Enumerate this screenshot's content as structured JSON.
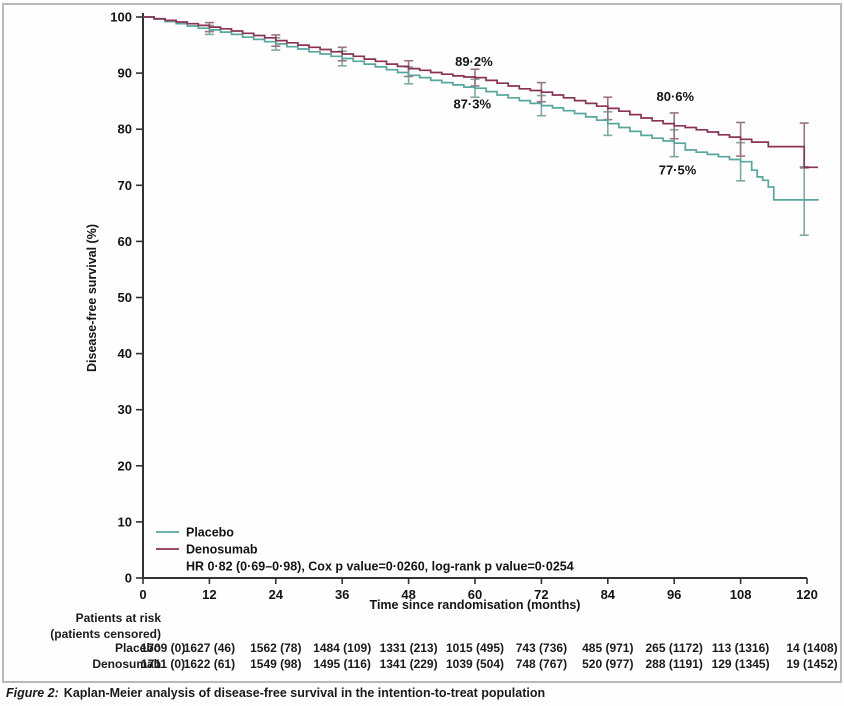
{
  "colors": {
    "placebo": "#58a79f",
    "denosumab": "#8b3352",
    "placebo_error": "#7fa9a3",
    "denosumab_error": "#9b7383",
    "axis": "#323232",
    "text": "#141414",
    "frame": "#bdb7ba"
  },
  "chart_data": {
    "type": "line",
    "subtype": "kaplan-meier-step",
    "title": "",
    "xlabel": "Time since randomisation (months)",
    "ylabel": "Disease-free survival (%)",
    "xlim": [
      0,
      120
    ],
    "ylim": [
      0,
      100
    ],
    "xticks": [
      0,
      12,
      24,
      36,
      48,
      60,
      72,
      84,
      96,
      108,
      120
    ],
    "yticks": [
      0,
      10,
      20,
      30,
      40,
      50,
      60,
      70,
      80,
      90,
      100
    ],
    "grid": false,
    "legend_position": "lower-left",
    "stat_line": "HR 0·82 (0·69–0·98), Cox p value=0·0260, log-rank p value=0·0254",
    "series": [
      {
        "name": "Placebo",
        "color_key": "placebo",
        "error_color_key": "placebo_error",
        "points": [
          [
            0,
            100
          ],
          [
            2,
            99.6
          ],
          [
            4,
            99.2
          ],
          [
            6,
            98.8
          ],
          [
            8,
            98.4
          ],
          [
            10,
            98.0
          ],
          [
            12,
            97.7
          ],
          [
            14,
            97.3
          ],
          [
            16,
            96.9
          ],
          [
            18,
            96.4
          ],
          [
            20,
            96.0
          ],
          [
            22,
            95.6
          ],
          [
            24,
            95.2
          ],
          [
            26,
            94.7
          ],
          [
            28,
            94.3
          ],
          [
            30,
            93.8
          ],
          [
            32,
            93.4
          ],
          [
            34,
            93.0
          ],
          [
            36,
            92.6
          ],
          [
            38,
            92.1
          ],
          [
            40,
            91.6
          ],
          [
            42,
            91.1
          ],
          [
            44,
            90.6
          ],
          [
            46,
            90.1
          ],
          [
            48,
            89.6
          ],
          [
            50,
            89.2
          ],
          [
            52,
            88.7
          ],
          [
            54,
            88.3
          ],
          [
            56,
            87.9
          ],
          [
            58,
            87.5
          ],
          [
            60,
            87.3
          ],
          [
            62,
            86.7
          ],
          [
            64,
            86.1
          ],
          [
            66,
            85.6
          ],
          [
            68,
            85.1
          ],
          [
            70,
            84.6
          ],
          [
            72,
            84.2
          ],
          [
            74,
            83.8
          ],
          [
            76,
            83.3
          ],
          [
            78,
            82.8
          ],
          [
            80,
            82.2
          ],
          [
            82,
            81.6
          ],
          [
            84,
            81.0
          ],
          [
            86,
            80.3
          ],
          [
            88,
            79.6
          ],
          [
            90,
            78.9
          ],
          [
            92,
            78.4
          ],
          [
            94,
            77.9
          ],
          [
            96,
            77.5
          ],
          [
            98,
            76.3
          ],
          [
            100,
            75.9
          ],
          [
            102,
            75.5
          ],
          [
            104,
            75.1
          ],
          [
            106,
            74.6
          ],
          [
            108,
            74.2
          ],
          [
            110,
            72.7
          ],
          [
            111,
            71.5
          ],
          [
            112,
            70.9
          ],
          [
            113,
            69.7
          ],
          [
            114,
            67.4
          ],
          [
            122,
            67.3
          ]
        ],
        "error_bars": [
          {
            "x": 12,
            "lo": 96.9,
            "hi": 98.5
          },
          {
            "x": 24,
            "lo": 94.1,
            "hi": 96.3
          },
          {
            "x": 36,
            "lo": 91.3,
            "hi": 93.9
          },
          {
            "x": 48,
            "lo": 88.1,
            "hi": 91.1
          },
          {
            "x": 60,
            "lo": 85.7,
            "hi": 88.9
          },
          {
            "x": 72,
            "lo": 82.4,
            "hi": 86.0
          },
          {
            "x": 84,
            "lo": 78.9,
            "hi": 83.1
          },
          {
            "x": 96,
            "lo": 75.1,
            "hi": 79.9
          },
          {
            "x": 108,
            "lo": 70.8,
            "hi": 77.6
          },
          {
            "x": 119.5,
            "lo": 61.1,
            "hi": 73.3
          }
        ]
      },
      {
        "name": "Denosumab",
        "color_key": "denosumab",
        "error_color_key": "denosumab_error",
        "points": [
          [
            0,
            100
          ],
          [
            2,
            99.7
          ],
          [
            4,
            99.4
          ],
          [
            6,
            99.1
          ],
          [
            8,
            98.8
          ],
          [
            10,
            98.5
          ],
          [
            12,
            98.2
          ],
          [
            14,
            97.9
          ],
          [
            16,
            97.5
          ],
          [
            18,
            97.1
          ],
          [
            20,
            96.7
          ],
          [
            22,
            96.3
          ],
          [
            24,
            95.8
          ],
          [
            26,
            95.4
          ],
          [
            28,
            95.0
          ],
          [
            30,
            94.6
          ],
          [
            32,
            94.2
          ],
          [
            34,
            93.8
          ],
          [
            36,
            93.4
          ],
          [
            38,
            93.0
          ],
          [
            40,
            92.5
          ],
          [
            42,
            92.1
          ],
          [
            44,
            91.6
          ],
          [
            46,
            91.2
          ],
          [
            48,
            90.8
          ],
          [
            50,
            90.5
          ],
          [
            52,
            90.1
          ],
          [
            54,
            89.8
          ],
          [
            56,
            89.5
          ],
          [
            58,
            89.3
          ],
          [
            60,
            89.2
          ],
          [
            62,
            88.7
          ],
          [
            64,
            88.2
          ],
          [
            66,
            87.7
          ],
          [
            68,
            87.2
          ],
          [
            70,
            86.9
          ],
          [
            72,
            86.6
          ],
          [
            74,
            86.1
          ],
          [
            76,
            85.6
          ],
          [
            78,
            85.1
          ],
          [
            80,
            84.6
          ],
          [
            82,
            84.1
          ],
          [
            84,
            83.7
          ],
          [
            86,
            83.2
          ],
          [
            88,
            82.6
          ],
          [
            90,
            82.0
          ],
          [
            92,
            81.5
          ],
          [
            94,
            81.0
          ],
          [
            96,
            80.6
          ],
          [
            98,
            80.3
          ],
          [
            100,
            79.9
          ],
          [
            102,
            79.5
          ],
          [
            104,
            79.0
          ],
          [
            106,
            78.6
          ],
          [
            108,
            78.2
          ],
          [
            110,
            77.7
          ],
          [
            113,
            76.9
          ],
          [
            119.5,
            73.2
          ],
          [
            122,
            73.2
          ]
        ],
        "error_bars": [
          {
            "x": 12,
            "lo": 97.4,
            "hi": 99.0
          },
          {
            "x": 24,
            "lo": 94.8,
            "hi": 96.8
          },
          {
            "x": 36,
            "lo": 92.2,
            "hi": 94.6
          },
          {
            "x": 48,
            "lo": 89.4,
            "hi": 92.2
          },
          {
            "x": 60,
            "lo": 87.7,
            "hi": 90.7
          },
          {
            "x": 72,
            "lo": 84.9,
            "hi": 88.3
          },
          {
            "x": 84,
            "lo": 81.7,
            "hi": 85.7
          },
          {
            "x": 96,
            "lo": 78.3,
            "hi": 82.9
          },
          {
            "x": 108,
            "lo": 75.2,
            "hi": 81.2
          },
          {
            "x": 119.5,
            "lo": 73.1,
            "hi": 81.1
          }
        ]
      }
    ],
    "annotations": [
      {
        "text": "89·2%",
        "x": 59.8,
        "y": 92.0
      },
      {
        "text": "87·3%",
        "x": 59.5,
        "y": 84.4
      },
      {
        "text": "80·6%",
        "x": 96.2,
        "y": 85.7
      },
      {
        "text": "77·5%",
        "x": 96.6,
        "y": 72.6
      }
    ]
  },
  "risk_table": {
    "title": "Patients at risk",
    "subtitle": "(patients censored)",
    "rows": [
      {
        "label": "Placebo",
        "counts": [
          "1709 (0)",
          "1627 (46)",
          "1562 (78)",
          "1484 (109)",
          "1331 (213)",
          "1015 (495)",
          "743 (736)",
          "485 (971)",
          "265 (1172)",
          "113 (1316)",
          "14 (1408)"
        ]
      },
      {
        "label": "Denosumab",
        "counts": [
          "1711 (0)",
          "1622 (61)",
          "1549 (98)",
          "1495 (116)",
          "1341 (229)",
          "1039 (504)",
          "748 (767)",
          "520 (977)",
          "288 (1191)",
          "129 (1345)",
          "19 (1452)"
        ]
      }
    ]
  },
  "caption": {
    "prefix": "Figure 2:",
    "text": "Kaplan-Meier analysis of disease-free survival in the intention-to-treat population"
  }
}
